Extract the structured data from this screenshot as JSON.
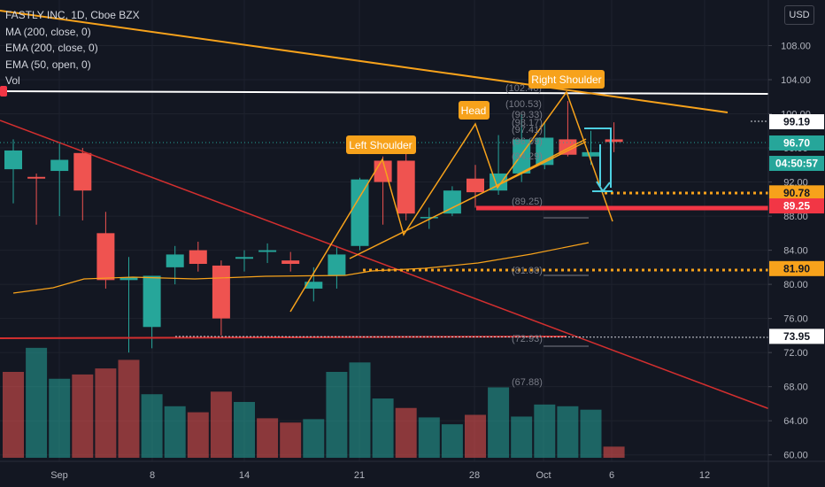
{
  "legend": {
    "symbol": "FASTLY INC, 1D, Cboe BZX",
    "ma200": "MA (200, close, 0)",
    "ema200": "EMA (200, close, 0)",
    "ema50": "EMA (50, open, 0)",
    "vol": "Vol"
  },
  "currency_button": "USD",
  "chart_data": {
    "type": "candlestick",
    "y_ticks": [
      "108.00",
      "104.00",
      "100.00",
      "96.00",
      "92.00",
      "88.00",
      "84.00",
      "80.00",
      "76.00",
      "72.00",
      "68.00",
      "64.00",
      "60.00"
    ],
    "x_ticks": [
      "Sep",
      "8",
      "14",
      "21",
      "28",
      "Oct",
      "6",
      "12"
    ],
    "candles": [
      {
        "o": 93.5,
        "h": 97.0,
        "l": 89.5,
        "c": 95.7
      },
      {
        "o": 92.6,
        "h": 93.0,
        "l": 87.0,
        "c": 92.4
      },
      {
        "o": 93.3,
        "h": 96.5,
        "l": 88.0,
        "c": 94.6
      },
      {
        "o": 95.4,
        "h": 96.0,
        "l": 87.5,
        "c": 91.0
      },
      {
        "o": 86.0,
        "h": 88.5,
        "l": 79.5,
        "c": 80.5
      },
      {
        "o": 80.5,
        "h": 83.2,
        "l": 72.0,
        "c": 80.8
      },
      {
        "o": 75.0,
        "h": 81.0,
        "l": 72.5,
        "c": 81.0
      },
      {
        "o": 82.0,
        "h": 84.5,
        "l": 80.0,
        "c": 83.5
      },
      {
        "o": 84.0,
        "h": 85.0,
        "l": 81.5,
        "c": 82.4
      },
      {
        "o": 82.2,
        "h": 82.8,
        "l": 74.0,
        "c": 76.0
      },
      {
        "o": 83.0,
        "h": 84.0,
        "l": 81.5,
        "c": 83.2
      },
      {
        "o": 83.8,
        "h": 84.8,
        "l": 82.5,
        "c": 84.0
      },
      {
        "o": 82.8,
        "h": 83.8,
        "l": 81.5,
        "c": 82.4
      },
      {
        "o": 79.5,
        "h": 82.0,
        "l": 78.0,
        "c": 80.3
      },
      {
        "o": 81.0,
        "h": 84.5,
        "l": 79.5,
        "c": 83.5
      },
      {
        "o": 84.5,
        "h": 92.5,
        "l": 84.0,
        "c": 92.3
      },
      {
        "o": 94.5,
        "h": 95.0,
        "l": 87.0,
        "c": 92.0
      },
      {
        "o": 94.5,
        "h": 95.5,
        "l": 87.5,
        "c": 88.3
      },
      {
        "o": 87.8,
        "h": 89.0,
        "l": 86.5,
        "c": 87.9
      },
      {
        "o": 88.3,
        "h": 91.5,
        "l": 88.0,
        "c": 91.0
      },
      {
        "o": 92.4,
        "h": 94.0,
        "l": 89.0,
        "c": 90.8
      },
      {
        "o": 91.0,
        "h": 97.5,
        "l": 90.5,
        "c": 93.0
      },
      {
        "o": 93.0,
        "h": 100.0,
        "l": 92.0,
        "c": 97.0
      },
      {
        "o": 94.0,
        "h": 99.0,
        "l": 93.5,
        "c": 97.2
      },
      {
        "o": 97.0,
        "h": 101.5,
        "l": 95.0,
        "c": 95.2
      },
      {
        "o": 95.0,
        "h": 98.0,
        "l": 94.0,
        "c": 95.5
      },
      {
        "o": 97.0,
        "h": 99.0,
        "l": 95.5,
        "c": 96.7
      }
    ],
    "volume": [
      {
        "v": 1.0,
        "up": false
      },
      {
        "v": 1.28,
        "up": true
      },
      {
        "v": 0.92,
        "up": true
      },
      {
        "v": 0.97,
        "up": false
      },
      {
        "v": 1.04,
        "up": false
      },
      {
        "v": 1.14,
        "up": false
      },
      {
        "v": 0.74,
        "up": true
      },
      {
        "v": 0.6,
        "up": true
      },
      {
        "v": 0.53,
        "up": false
      },
      {
        "v": 0.77,
        "up": false
      },
      {
        "v": 0.65,
        "up": true
      },
      {
        "v": 0.46,
        "up": false
      },
      {
        "v": 0.41,
        "up": false
      },
      {
        "v": 0.45,
        "up": true
      },
      {
        "v": 1.0,
        "up": true
      },
      {
        "v": 1.11,
        "up": true
      },
      {
        "v": 0.69,
        "up": true
      },
      {
        "v": 0.58,
        "up": false
      },
      {
        "v": 0.47,
        "up": true
      },
      {
        "v": 0.39,
        "up": true
      },
      {
        "v": 0.5,
        "up": false
      },
      {
        "v": 0.82,
        "up": true
      },
      {
        "v": 0.48,
        "up": true
      },
      {
        "v": 0.62,
        "up": true
      },
      {
        "v": 0.6,
        "up": true
      },
      {
        "v": 0.56,
        "up": true
      },
      {
        "v": 0.13,
        "up": false
      }
    ],
    "price_labels": [
      {
        "text": "99.19",
        "value": 99.19,
        "bg": "#ffffff",
        "fg": "#131722"
      },
      {
        "text": "96.70",
        "value": 96.7,
        "bg": "#26a69a",
        "fg": "#ffffff"
      },
      {
        "text": "04:50:57",
        "value": 94.5,
        "bg": "#26a69a",
        "fg": "#ffffff"
      },
      {
        "text": "90.78",
        "value": 90.78,
        "bg": "#f7a21b",
        "fg": "#131722"
      },
      {
        "text": "89.25",
        "value": 89.25,
        "bg": "#f23645",
        "fg": "#ffffff"
      },
      {
        "text": "81.90",
        "value": 81.9,
        "bg": "#f7a21b",
        "fg": "#131722"
      },
      {
        "text": "73.95",
        "value": 73.95,
        "bg": "#ffffff",
        "fg": "#131722"
      }
    ],
    "pattern_labels": [
      "Left Shoulder",
      "Head",
      "Right Shoulder"
    ],
    "fib_labels": [
      "(102.46)",
      "(100.53)",
      "(99.33)",
      "(98.17)",
      "(97.41)",
      "(96.09)",
      "(94.29)",
      "(89.25)",
      "(81.08)",
      "(72.93)",
      "(67.88)"
    ],
    "colors": {
      "up": "#26a69a",
      "down": "#ef5350",
      "background": "#131722",
      "orange": "#f7a21b",
      "red": "#d32f2f",
      "white": "#ffffff",
      "cyan": "#4dd0e1"
    }
  }
}
